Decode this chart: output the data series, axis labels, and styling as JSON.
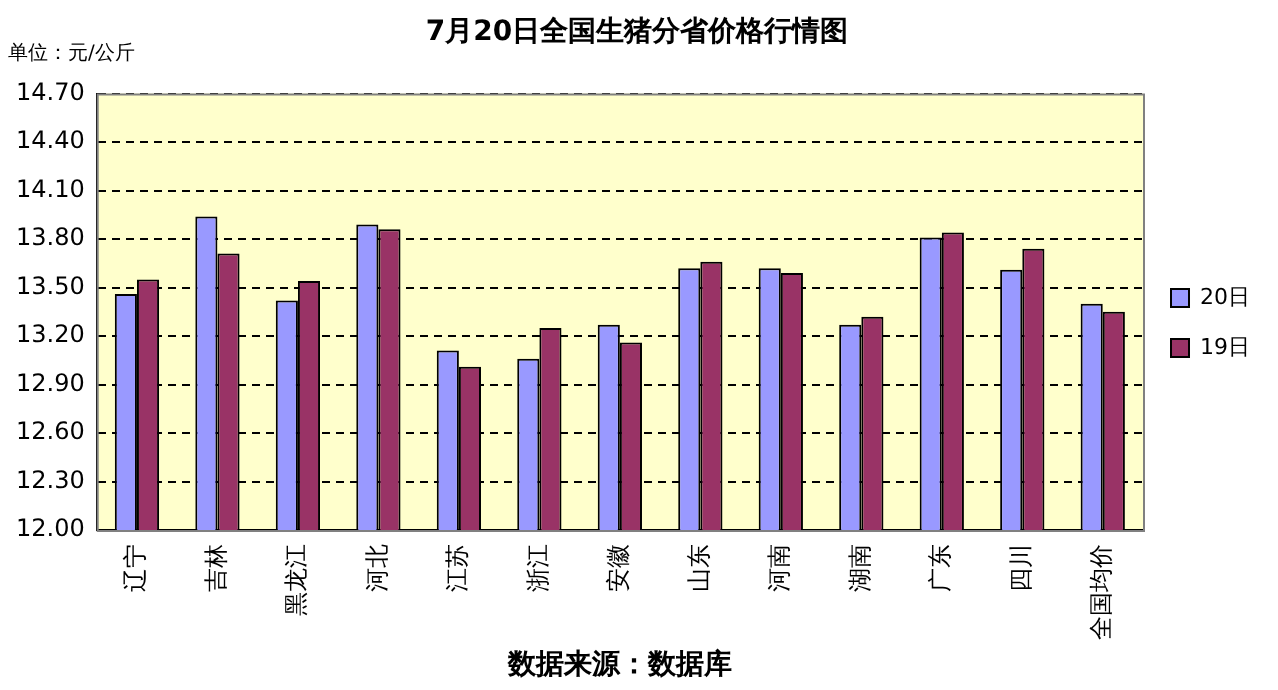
{
  "chart_data": {
    "type": "bar",
    "title": "7月20日全国生猪分省价格行情图",
    "ylabel": "单位：元/公斤",
    "categories": [
      "辽宁",
      "吉林",
      "黑龙江",
      "河北",
      "江苏",
      "浙江",
      "安徽",
      "山东",
      "河南",
      "湖南",
      "广东",
      "四川",
      "全国均价"
    ],
    "series": [
      {
        "name": "20日",
        "color": "#9999ff",
        "values": [
          13.46,
          13.94,
          13.42,
          13.89,
          13.11,
          13.06,
          13.27,
          13.62,
          13.62,
          13.27,
          13.81,
          13.61,
          13.4
        ]
      },
      {
        "name": "19日",
        "color": "#993366",
        "values": [
          13.55,
          13.71,
          13.54,
          13.86,
          13.01,
          13.25,
          13.16,
          13.66,
          13.59,
          13.32,
          13.84,
          13.74,
          13.35
        ]
      }
    ],
    "ylim": [
      12,
      14.7
    ],
    "yticks": [
      {
        "value": 12,
        "label": "12.00"
      },
      {
        "value": 12.3,
        "label": "12.30"
      },
      {
        "value": 12.6,
        "label": "12.60"
      },
      {
        "value": 12.9,
        "label": "12.90"
      },
      {
        "value": 13.2,
        "label": "13.20"
      },
      {
        "value": 13.5,
        "label": "13.50"
      },
      {
        "value": 13.8,
        "label": "13.80"
      },
      {
        "value": 14.1,
        "label": "14.10"
      },
      {
        "value": 14.4,
        "label": "14.40"
      },
      {
        "value": 14.7,
        "label": "14.70"
      }
    ],
    "grid": "y",
    "legend": "right",
    "annotations": [
      "数据来源：数据库"
    ]
  }
}
